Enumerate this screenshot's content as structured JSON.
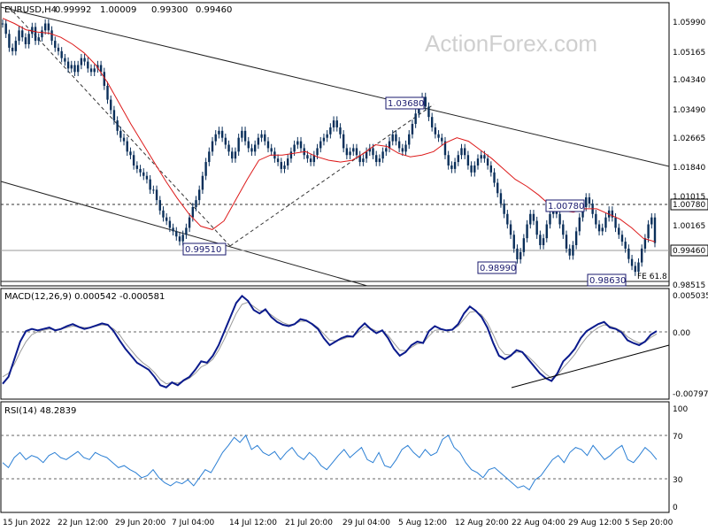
{
  "watermark": "ActionForex.com",
  "chart_data": [
    {
      "type": "line",
      "title": "EURUSD,H4",
      "ohlc": {
        "open": "0.99992",
        "high": "1.00009",
        "low": "0.99300",
        "close": "0.99460"
      },
      "y_ticks": [
        "1.05990",
        "1.05165",
        "1.04340",
        "1.03490",
        "1.02665",
        "1.01840",
        "1.01015",
        "1.00165",
        "0.99460",
        "0.98515"
      ],
      "ylim": [
        0.9825,
        1.0635
      ],
      "current_price": "0.99460",
      "level_line": "1.00780",
      "annotations": [
        {
          "text": "1.03680",
          "x": 111,
          "y": 1.0368
        },
        {
          "text": "1.00780",
          "x": 197,
          "y": 1.0078
        },
        {
          "text": "0.99510",
          "x": 80,
          "y": 0.9951
        },
        {
          "text": "0.98990",
          "x": 180,
          "y": 0.9899
        },
        {
          "text": "0.98630",
          "x": 221,
          "y": 0.9863
        },
        {
          "text": "FE 61.8",
          "x": 231,
          "y": 0.9858
        }
      ],
      "series": [
        {
          "name": "",
          "color": "#0a2f5a",
          "kind": "candles",
          "values": [
            1.058,
            1.055,
            1.051,
            1.05,
            1.053,
            1.056,
            1.054,
            1.052,
            1.055,
            1.057,
            1.053,
            1.054,
            1.056,
            1.058,
            1.056,
            1.053,
            1.051,
            1.05,
            1.048,
            1.047,
            1.045,
            1.046,
            1.044,
            1.046,
            1.048,
            1.047,
            1.045,
            1.044,
            1.045,
            1.046,
            1.044,
            1.04,
            1.036,
            1.033,
            1.03,
            1.027,
            1.025,
            1.024,
            1.021,
            1.02,
            1.017,
            1.016,
            1.015,
            1.014,
            1.013,
            1.01,
            1.01,
            1.007,
            1.004,
            1.002,
            1.001,
            0.999,
            0.998,
            0.9965,
            0.9951,
            0.997,
            0.999,
            1.002,
            1.005,
            1.007,
            1.01,
            1.014,
            1.018,
            1.021,
            1.024,
            1.026,
            1.027,
            1.025,
            1.023,
            1.021,
            1.019,
            1.021,
            1.025,
            1.027,
            1.024,
            1.022,
            1.021,
            1.023,
            1.025,
            1.026,
            1.024,
            1.022,
            1.021,
            1.019,
            1.018,
            1.016,
            1.017,
            1.019,
            1.021,
            1.023,
            1.024,
            1.022,
            1.02,
            1.019,
            1.018,
            1.02,
            1.022,
            1.024,
            1.025,
            1.026,
            1.028,
            1.03,
            1.028,
            1.026,
            1.022,
            1.02,
            1.021,
            1.022,
            1.02,
            1.018,
            1.019,
            1.021,
            1.022,
            1.02,
            1.018,
            1.019,
            1.021,
            1.022,
            1.024,
            1.026,
            1.024,
            1.022,
            1.021,
            1.023,
            1.026,
            1.029,
            1.032,
            1.035,
            1.0368,
            1.034,
            1.031,
            1.028,
            1.026,
            1.025,
            1.024,
            1.02,
            1.017,
            1.016,
            1.018,
            1.02,
            1.022,
            1.02,
            1.017,
            1.015,
            1.017,
            1.019,
            1.02,
            1.019,
            1.017,
            1.015,
            1.012,
            1.009,
            1.006,
            1.003,
            1.0,
            0.997,
            0.993,
            0.9899,
            0.992,
            0.996,
            1.0,
            1.003,
            1.001,
            0.997,
            0.994,
            0.996,
            1.0,
            1.003,
            1.005,
            1.003,
            1.0,
            0.997,
            0.993,
            0.991,
            0.994,
            0.998,
            1.002,
            1.005,
            1.0078,
            1.006,
            1.003,
            1.0,
            0.998,
            0.999,
            1.002,
            1.004,
            1.002,
            0.999,
            0.997,
            0.995,
            0.993,
            0.99,
            0.988,
            0.9863,
            0.989,
            0.993,
            0.996,
            1.0,
            1.002,
            0.9946
          ]
        },
        {
          "name": "",
          "color": "#dd1a1a",
          "kind": "ma",
          "values": [
            1.0595,
            1.058,
            1.0562,
            1.0555,
            1.0552,
            1.054,
            1.052,
            1.0495,
            1.046,
            1.041,
            1.035,
            1.029,
            1.0235,
            1.018,
            1.0125,
            1.0075,
            1.003,
            0.9995,
            0.9985,
            1.001,
            1.007,
            1.013,
            1.0185,
            1.02,
            1.02,
            1.0205,
            1.021,
            1.0195,
            1.0185,
            1.018,
            1.0185,
            1.0205,
            1.023,
            1.0225,
            1.0205,
            1.0195,
            1.02,
            1.021,
            1.0235,
            1.025,
            1.024,
            1.0215,
            1.019,
            1.016,
            1.013,
            1.011,
            1.0085,
            1.0055,
            1.004,
            1.0035,
            1.0045,
            1.0045,
            1.003,
            1.0015,
            0.999,
            0.996,
            0.995
          ]
        }
      ],
      "xlabel": "",
      "ylabel": ""
    },
    {
      "type": "line",
      "title": "MACD(12,26,9) 0.000542 -0.000581",
      "y_ticks": [
        "0.005035",
        "0.00",
        "-0.007973"
      ],
      "ylim": [
        -0.0088,
        0.0058
      ],
      "series": [
        {
          "name": "",
          "color": "#0a1a8c",
          "values": [
            -0.007,
            -0.006,
            -0.0035,
            -0.001,
            0.0005,
            0.0008,
            0.0006,
            0.0008,
            0.001,
            0.0006,
            0.0008,
            0.0012,
            0.0015,
            0.0011,
            0.0008,
            0.001,
            0.0013,
            0.0016,
            0.0014,
            0.0005,
            -0.0008,
            -0.002,
            -0.003,
            -0.004,
            -0.0045,
            -0.005,
            -0.006,
            -0.0072,
            -0.0075,
            -0.0068,
            -0.0072,
            -0.0065,
            -0.006,
            -0.005,
            -0.0038,
            -0.004,
            -0.003,
            -0.0015,
            0.0005,
            0.0025,
            0.0045,
            0.0055,
            0.0048,
            0.0035,
            0.003,
            0.0036,
            0.0025,
            0.0018,
            0.0014,
            0.0012,
            0.0015,
            0.0022,
            0.002,
            0.0015,
            0.0008,
            -0.0005,
            -0.0015,
            -0.001,
            -0.0005,
            -0.0002,
            -0.0003,
            0.0008,
            0.0016,
            0.0008,
            0.0002,
            0.0006,
            -0.0005,
            -0.002,
            -0.003,
            -0.0025,
            -0.0015,
            -0.001,
            -0.0012,
            0.0005,
            0.0012,
            0.0008,
            0.0006,
            0.0007,
            0.0015,
            0.003,
            0.004,
            0.0034,
            0.0025,
            0.001,
            -0.0012,
            -0.003,
            -0.0035,
            -0.003,
            -0.0022,
            -0.0025,
            -0.0035,
            -0.0045,
            -0.0055,
            -0.0062,
            -0.0066,
            -0.0055,
            -0.0038,
            -0.003,
            -0.002,
            -0.0005,
            0.0005,
            0.001,
            0.0015,
            0.0018,
            0.001,
            0.0008,
            0.0003,
            -0.0008,
            -0.0012,
            -0.0015,
            -0.001,
            0.0,
            0.0005
          ]
        },
        {
          "name": "",
          "color": "#9a9a9a",
          "values": [
            -0.006,
            -0.0055,
            -0.0042,
            -0.0025,
            -0.001,
            0.0,
            0.0004,
            0.0006,
            0.0008,
            0.0007,
            0.0008,
            0.001,
            0.0012,
            0.0011,
            0.001,
            0.001,
            0.0012,
            0.0014,
            0.0013,
            0.0008,
            0.0,
            -0.0012,
            -0.0022,
            -0.0032,
            -0.004,
            -0.0046,
            -0.0054,
            -0.0064,
            -0.007,
            -0.0068,
            -0.0069,
            -0.0066,
            -0.0062,
            -0.0055,
            -0.0046,
            -0.0042,
            -0.0035,
            -0.0022,
            -0.0006,
            0.0012,
            0.003,
            0.0043,
            0.0046,
            0.004,
            0.0034,
            0.0034,
            0.0028,
            0.0022,
            0.0017,
            0.0014,
            0.0015,
            0.0019,
            0.0019,
            0.0016,
            0.001,
            0.0001,
            -0.0008,
            -0.0009,
            -0.0007,
            -0.0004,
            -0.0003,
            0.0004,
            0.0011,
            0.0009,
            0.0005,
            0.0005,
            -0.0001,
            -0.0012,
            -0.0022,
            -0.0023,
            -0.0018,
            -0.0013,
            -0.0012,
            -0.0002,
            0.0006,
            0.0007,
            0.0006,
            0.0007,
            0.0012,
            0.0022,
            0.0032,
            0.0033,
            0.0028,
            0.0017,
            0.0,
            -0.0018,
            -0.0028,
            -0.0029,
            -0.0025,
            -0.0025,
            -0.0031,
            -0.0039,
            -0.0048,
            -0.0056,
            -0.0062,
            -0.0058,
            -0.0047,
            -0.0038,
            -0.0028,
            -0.0015,
            -0.0004,
            0.0004,
            0.001,
            0.0014,
            0.0012,
            0.0009,
            0.0005,
            -0.0003,
            -0.0008,
            -0.0012,
            -0.0011,
            -0.0004,
            0.0001
          ]
        }
      ]
    },
    {
      "type": "line",
      "title": "RSI(14) 48.2839",
      "y_ticks": [
        "100",
        "70",
        "30",
        "0"
      ],
      "ylim": [
        0,
        100
      ],
      "series": [
        {
          "name": "",
          "color": "#2b7fd4",
          "values": [
            45,
            40,
            50,
            55,
            48,
            52,
            50,
            45,
            52,
            55,
            50,
            48,
            52,
            56,
            50,
            48,
            55,
            52,
            50,
            45,
            40,
            42,
            38,
            35,
            30,
            32,
            38,
            30,
            25,
            22,
            26,
            24,
            28,
            22,
            30,
            38,
            35,
            45,
            55,
            62,
            70,
            65,
            72,
            58,
            62,
            55,
            52,
            56,
            48,
            55,
            60,
            52,
            48,
            55,
            50,
            42,
            38,
            45,
            52,
            58,
            50,
            55,
            60,
            48,
            45,
            55,
            42,
            40,
            48,
            58,
            62,
            55,
            50,
            58,
            52,
            55,
            68,
            72,
            60,
            55,
            45,
            38,
            35,
            30,
            38,
            40,
            35,
            30,
            25,
            20,
            22,
            18,
            28,
            32,
            40,
            48,
            52,
            45,
            55,
            60,
            58,
            52,
            62,
            55,
            48,
            52,
            58,
            62,
            48,
            45,
            52,
            60,
            55,
            48
          ]
        }
      ]
    }
  ],
  "x_ticks": [
    "15 Jun 2022",
    "22 Jun 12:00",
    "29 Jun 20:00",
    "7 Jul 04:00",
    "14 Jul 12:00",
    "21 Jul 20:00",
    "29 Jul 04:00",
    "5 Aug 12:00",
    "12 Aug 20:00",
    "22 Aug 04:00",
    "29 Aug 12:00",
    "5 Sep 20:00"
  ]
}
